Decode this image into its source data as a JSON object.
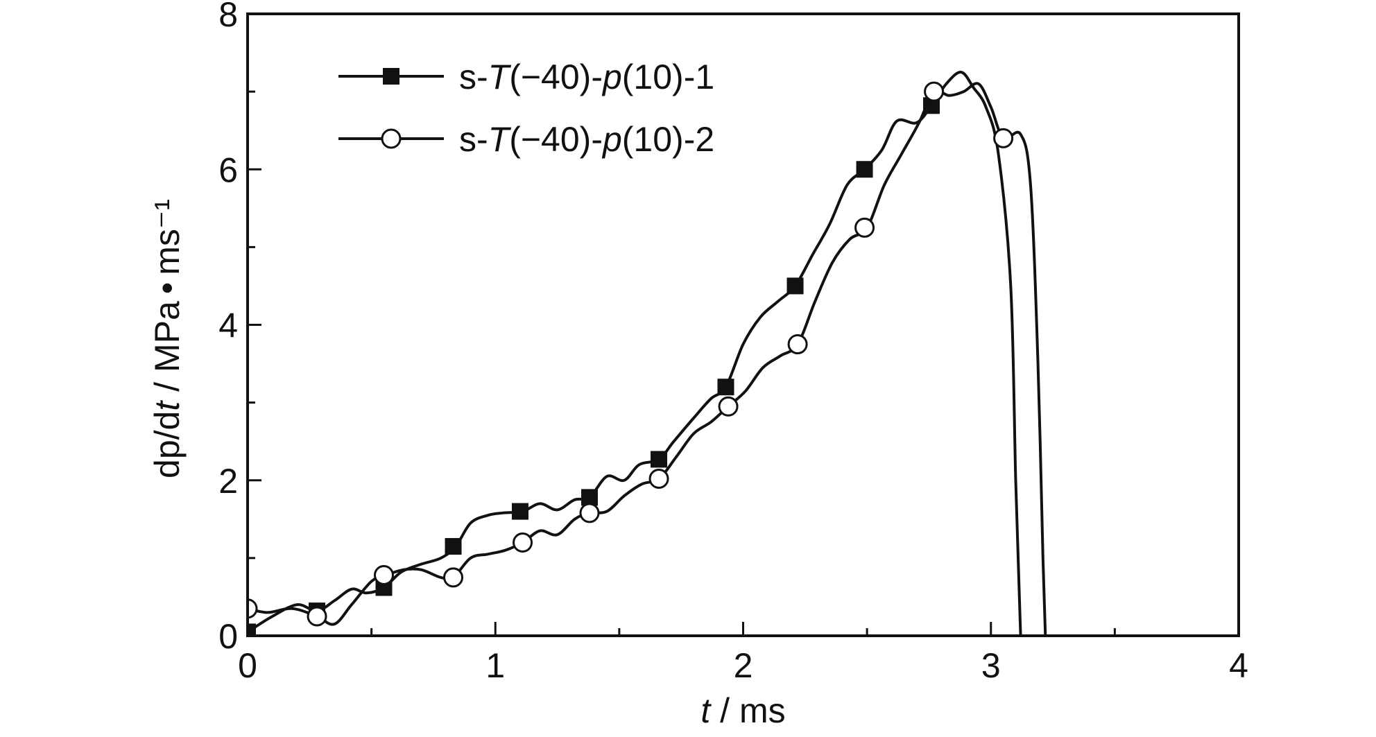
{
  "chart_data": {
    "type": "line",
    "title": "",
    "xlabel": {
      "var": "t",
      "unit": " / ms"
    },
    "ylabel": {
      "pre": "dp/d",
      "var": "t",
      "unit": " / MPa • ms⁻¹"
    },
    "xlim": [
      0,
      4
    ],
    "ylim": [
      0,
      8
    ],
    "xticks": [
      0,
      1,
      2,
      3,
      4
    ],
    "yticks": [
      0,
      2,
      4,
      6,
      8
    ],
    "xtick_labels": [
      "0",
      "1",
      "2",
      "3",
      "4"
    ],
    "ytick_labels": [
      "0",
      "2",
      "4",
      "6",
      "8"
    ],
    "grid": false,
    "legend_position": "top-left",
    "series": [
      {
        "name": "s-T(−40)-p(10)-1",
        "name_parts": [
          "s-",
          "T",
          "(−40)-",
          "p",
          "(10)-1"
        ],
        "marker": "filled-square",
        "color": "#111111",
        "x": [
          0,
          0.1,
          0.2,
          0.28,
          0.35,
          0.42,
          0.48,
          0.55,
          0.62,
          0.7,
          0.78,
          0.84,
          0.9,
          0.97,
          1.03,
          1.11,
          1.18,
          1.25,
          1.32,
          1.38,
          1.45,
          1.52,
          1.58,
          1.66,
          1.72,
          1.8,
          1.87,
          1.93,
          2.0,
          2.07,
          2.14,
          2.21,
          2.28,
          2.35,
          2.42,
          2.49,
          2.56,
          2.62,
          2.7,
          2.76,
          2.82,
          2.88,
          2.93,
          2.98,
          3.03,
          3.08,
          3.1,
          3.115,
          3.12
        ],
        "y": [
          0.05,
          0.25,
          0.4,
          0.32,
          0.45,
          0.6,
          0.55,
          0.62,
          0.82,
          0.92,
          1.0,
          1.15,
          1.45,
          1.55,
          1.58,
          1.6,
          1.7,
          1.62,
          1.75,
          1.78,
          2.05,
          2.0,
          2.2,
          2.27,
          2.5,
          2.8,
          3.05,
          3.2,
          3.75,
          4.1,
          4.3,
          4.5,
          4.9,
          5.3,
          5.8,
          6.0,
          6.25,
          6.62,
          6.6,
          6.82,
          7.1,
          7.25,
          7.05,
          6.8,
          6.2,
          4.5,
          2.0,
          0.5,
          0.0
        ],
        "markers_x": [
          0,
          0.28,
          0.55,
          0.83,
          1.1,
          1.38,
          1.66,
          1.93,
          2.21,
          2.49,
          2.76
        ],
        "markers_y": [
          0.05,
          0.32,
          0.62,
          1.15,
          1.6,
          1.78,
          2.27,
          3.2,
          4.5,
          6.0,
          6.82
        ]
      },
      {
        "name": "s-T(−40)-p(10)-2",
        "name_parts": [
          "s-",
          "T",
          "(−40)-",
          "p",
          "(10)-2"
        ],
        "marker": "open-circle",
        "color": "#111111",
        "x": [
          0,
          0.08,
          0.18,
          0.28,
          0.35,
          0.42,
          0.5,
          0.56,
          0.63,
          0.7,
          0.78,
          0.83,
          0.9,
          0.97,
          1.04,
          1.11,
          1.18,
          1.25,
          1.32,
          1.38,
          1.45,
          1.52,
          1.59,
          1.66,
          1.73,
          1.8,
          1.87,
          1.94,
          2.01,
          2.08,
          2.15,
          2.22,
          2.29,
          2.36,
          2.43,
          2.5,
          2.57,
          2.64,
          2.71,
          2.77,
          2.83,
          2.89,
          2.95,
          3.0,
          3.05,
          3.12,
          3.16,
          3.19,
          3.21,
          3.22
        ],
        "y": [
          0.35,
          0.3,
          0.35,
          0.25,
          0.15,
          0.4,
          0.7,
          0.78,
          0.85,
          0.85,
          0.75,
          0.75,
          1.0,
          1.05,
          1.1,
          1.2,
          1.35,
          1.3,
          1.5,
          1.58,
          1.6,
          1.8,
          1.95,
          2.02,
          2.3,
          2.6,
          2.75,
          2.95,
          3.15,
          3.45,
          3.6,
          3.75,
          4.3,
          4.8,
          5.1,
          5.25,
          5.8,
          6.2,
          6.6,
          7.0,
          6.95,
          7.0,
          7.1,
          6.8,
          6.4,
          6.45,
          5.8,
          3.5,
          1.0,
          0.0
        ],
        "markers_x": [
          0,
          0.28,
          0.55,
          0.83,
          1.11,
          1.38,
          1.66,
          1.94,
          2.22,
          2.49,
          2.77,
          3.05
        ],
        "markers_y": [
          0.35,
          0.25,
          0.78,
          0.75,
          1.2,
          1.58,
          2.02,
          2.95,
          3.75,
          5.25,
          7.0,
          6.4
        ]
      }
    ]
  }
}
